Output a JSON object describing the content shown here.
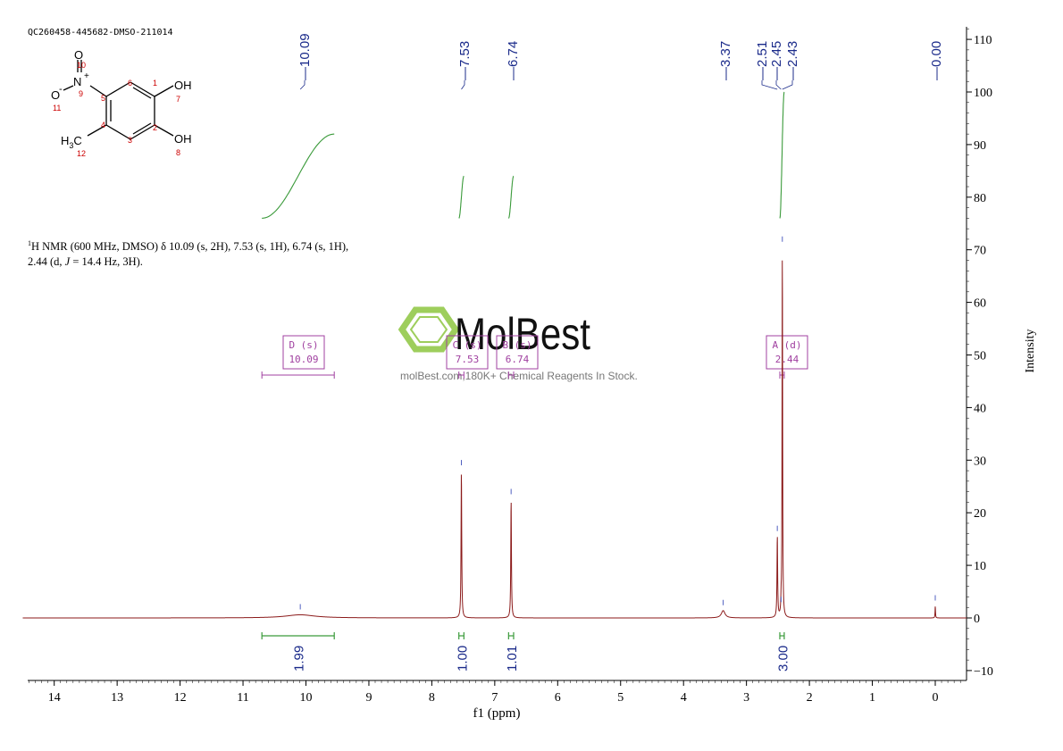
{
  "sample_id": "QC260458-445682-DMSO-211014",
  "nmr_description": {
    "line1": "H NMR (600 MHz, DMSO) δ 10.09 (s, 2H), 7.53 (s, 1H), 6.74 (s, 1H),",
    "line1_sup": "1",
    "line2_a": "2.44 (d, ",
    "line2_j": "J",
    "line2_b": " = 14.4 Hz, 3H)."
  },
  "watermark": {
    "brand": "MolBest",
    "tagline": "molBest.com,180K+ Chemical Reagents In Stock."
  },
  "structure_labels": {
    "O_top": "O",
    "N_label": "N",
    "N_charge": "+",
    "O_minus": "O",
    "O_minus_charge": "-",
    "OH_top": "OH",
    "OH_bottom": "OH",
    "methyl": "H",
    "methyl_sub": "3",
    "methyl_c": "C",
    "atom_numbers": [
      "10",
      "9",
      "11",
      "6",
      "5",
      "1",
      "7",
      "4",
      "2",
      "3",
      "8",
      "12"
    ]
  },
  "colors": {
    "spectrum": "#8b1a1a",
    "integral": "#3a9a3a",
    "peak_label": "#1a2a8a",
    "multiplet": "#a040a0",
    "atom_number": "#cc0000",
    "watermark_green": "#8dc63f"
  },
  "chart_data": {
    "type": "line",
    "title": "",
    "xlabel": "f1 (ppm)",
    "ylabel": "Intensity",
    "xlim": [
      14.5,
      -0.5
    ],
    "ylim": [
      -12,
      112
    ],
    "x_reversed": true,
    "x_ticks": [
      14,
      13,
      12,
      11,
      10,
      9,
      8,
      7,
      6,
      5,
      4,
      3,
      2,
      1,
      0
    ],
    "y_ticks": [
      -10,
      0,
      10,
      20,
      30,
      40,
      50,
      60,
      70,
      80,
      90,
      100,
      110
    ],
    "grid": false,
    "peaks": [
      {
        "ppm": 10.09,
        "height": 0.6,
        "width": 0.28
      },
      {
        "ppm": 7.53,
        "height": 28,
        "width": 0.006
      },
      {
        "ppm": 6.74,
        "height": 22.5,
        "width": 0.006
      },
      {
        "ppm": 3.37,
        "height": 1.4,
        "width": 0.035
      },
      {
        "ppm": 2.51,
        "height": 15.5,
        "width": 0.006
      },
      {
        "ppm": 2.45,
        "height": 2.0,
        "width": 0.004
      },
      {
        "ppm": 2.43,
        "height": 70.5,
        "width": 0.005
      },
      {
        "ppm": 0.0,
        "height": 2.3,
        "width": 0.004
      }
    ],
    "peak_labels": [
      "10.09",
      "7.53",
      "6.74",
      "3.37",
      "2.51",
      "2.45",
      "2.43",
      "0.00"
    ],
    "peak_label_ppm": [
      10.09,
      7.53,
      6.74,
      3.37,
      2.51,
      2.45,
      2.43,
      0.0
    ],
    "integrals": [
      {
        "from": 10.7,
        "to": 9.55,
        "value": "1.99",
        "y_start": 76,
        "y_end": 92
      },
      {
        "from": 7.57,
        "to": 7.49,
        "value": "1.00",
        "y_start": 76,
        "y_end": 84
      },
      {
        "from": 6.78,
        "to": 6.7,
        "value": "1.01",
        "y_start": 76,
        "y_end": 84
      },
      {
        "from": 2.47,
        "to": 2.4,
        "value": "3.00",
        "y_start": 76,
        "y_end": 100
      }
    ],
    "multiplets": [
      {
        "letter": "D",
        "mult": "(s)",
        "shift": "10.09",
        "ppm": 10.09,
        "range": [
          10.7,
          9.55
        ]
      },
      {
        "letter": "C",
        "mult": "(s)",
        "shift": "7.53",
        "ppm": 7.53,
        "range": [
          7.57,
          7.49
        ]
      },
      {
        "letter": "B",
        "mult": "(s)",
        "shift": "6.74",
        "ppm": 6.74,
        "range": [
          6.78,
          6.7
        ]
      },
      {
        "letter": "A",
        "mult": "(d)",
        "shift": "2.44",
        "ppm": 2.44,
        "range": [
          2.47,
          2.4
        ]
      }
    ]
  }
}
